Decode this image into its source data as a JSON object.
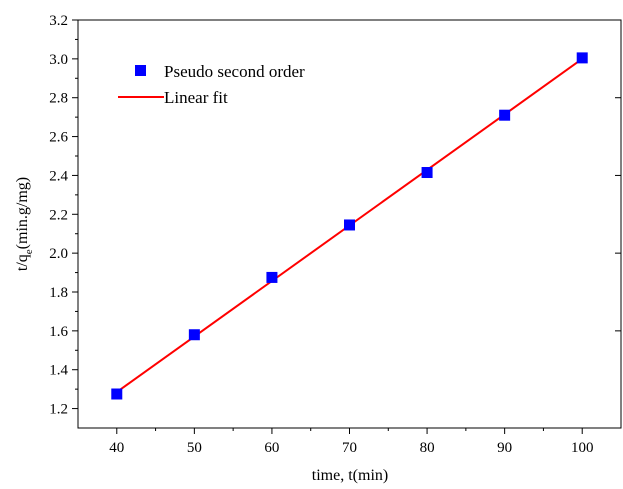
{
  "chart_data": {
    "type": "scatter",
    "xlabel": "time, t(min)",
    "ylabel_main": "t/q",
    "ylabel_sub": "e",
    "ylabel_tail": "(min.g/mg)",
    "xlim": [
      35,
      105
    ],
    "ylim": [
      1.1,
      3.2
    ],
    "x_ticks": [
      40,
      50,
      60,
      70,
      80,
      90,
      100
    ],
    "x_tick_labels": [
      "40",
      "50",
      "60",
      "70",
      "80",
      "90",
      "100"
    ],
    "y_ticks": [
      1.2,
      1.4,
      1.6,
      1.8,
      2.0,
      2.2,
      2.4,
      2.6,
      2.8,
      3.0,
      3.2
    ],
    "y_tick_labels": [
      "1.2",
      "1.4",
      "1.6",
      "1.8",
      "2.0",
      "2.2",
      "2.4",
      "2.6",
      "2.8",
      "3.0",
      "3.2"
    ],
    "series": [
      {
        "name": "Pseudo second order",
        "kind": "scatter",
        "marker": "square",
        "color": "#0000ff",
        "x": [
          40,
          50,
          60,
          70,
          80,
          90,
          100
        ],
        "y": [
          1.275,
          1.58,
          1.875,
          2.145,
          2.415,
          2.71,
          3.005
        ]
      },
      {
        "name": "Linear fit",
        "kind": "line",
        "color": "#ff0000",
        "x": [
          40,
          100
        ],
        "y": [
          1.285,
          3.0
        ]
      }
    ],
    "legend_position": "top-left",
    "grid": false
  }
}
